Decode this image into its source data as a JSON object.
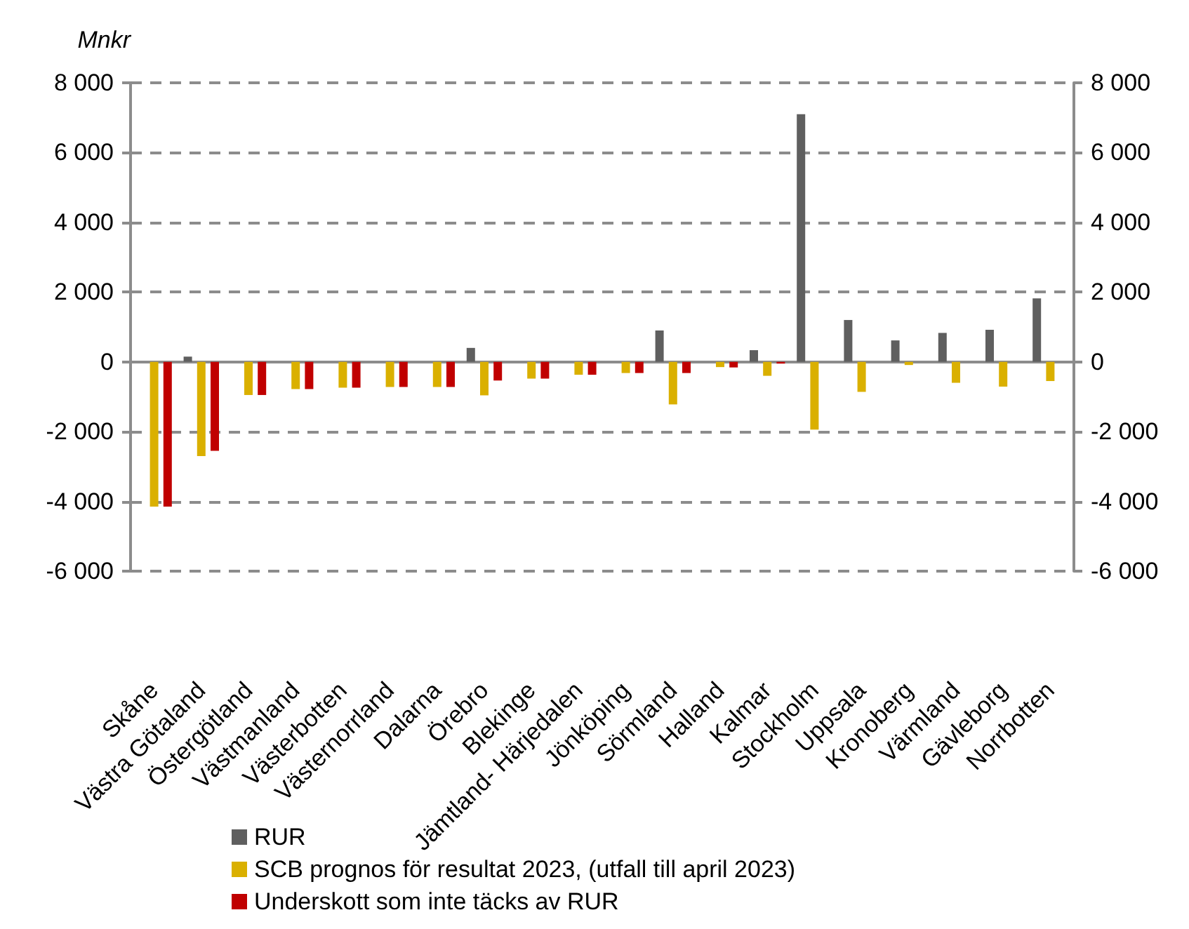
{
  "chart_data": {
    "type": "bar",
    "ylabel": "Mnkr",
    "categories": [
      "Skåne",
      "Västra Götaland",
      "Östergötland",
      "Västmanland",
      "Västerbotten",
      "Västernorrland",
      "Dalarna",
      "Örebro",
      "Blekinge",
      "Jämtland- Härjedalen",
      "Jönköping",
      "Sörmland",
      "Halland",
      "Kalmar",
      "Stockholm",
      "Uppsala",
      "Kronoberg",
      "Värmland",
      "Gävleborg",
      "Norrbotten"
    ],
    "series": [
      {
        "name": "RUR",
        "color": "#5f5f5f",
        "values": [
          null,
          150,
          null,
          null,
          null,
          null,
          null,
          400,
          null,
          null,
          null,
          900,
          null,
          335,
          7100,
          1200,
          615,
          830,
          920,
          1820
        ]
      },
      {
        "name": "SCB prognos för resultat 2023, (utfall till april 2023)",
        "color": "#dab000",
        "values": [
          -4150,
          -2700,
          -950,
          -780,
          -740,
          -720,
          -720,
          -960,
          -480,
          -370,
          -320,
          -1220,
          -150,
          -400,
          -1940,
          -860,
          -90,
          -600,
          -710,
          -550
        ]
      },
      {
        "name": "Underskott som inte täcks av RUR",
        "color": "#c00000",
        "values": [
          -4150,
          -2550,
          -950,
          -780,
          -740,
          -720,
          -720,
          -535,
          -480,
          -370,
          -320,
          -320,
          -160,
          -50,
          null,
          null,
          null,
          null,
          null,
          null
        ]
      }
    ],
    "ylim": [
      -6000,
      8000
    ],
    "yticks": [
      {
        "value": -6000,
        "label": "-6 000"
      },
      {
        "value": -4000,
        "label": "-4 000"
      },
      {
        "value": -2000,
        "label": "-2 000"
      },
      0,
      {
        "value": 2000,
        "label": "2 000"
      },
      {
        "value": 4000,
        "label": "4 000"
      },
      {
        "value": 6000,
        "label": "6 000"
      },
      {
        "value": 8000,
        "label": "8 000"
      }
    ],
    "y2lim": [
      -6000,
      8000
    ],
    "y2ticks": [
      {
        "value": -6000,
        "label": "-6 000"
      },
      {
        "value": -4000,
        "label": "-4 000"
      },
      {
        "value": -2000,
        "label": "-2 000"
      },
      0,
      {
        "value": 2000,
        "label": "2 000"
      },
      {
        "value": 4000,
        "label": "4 000"
      },
      {
        "value": 6000,
        "label": "6 000"
      },
      {
        "value": 8000,
        "label": "8 000"
      }
    ],
    "grid": "y",
    "legend": "bottom left"
  }
}
